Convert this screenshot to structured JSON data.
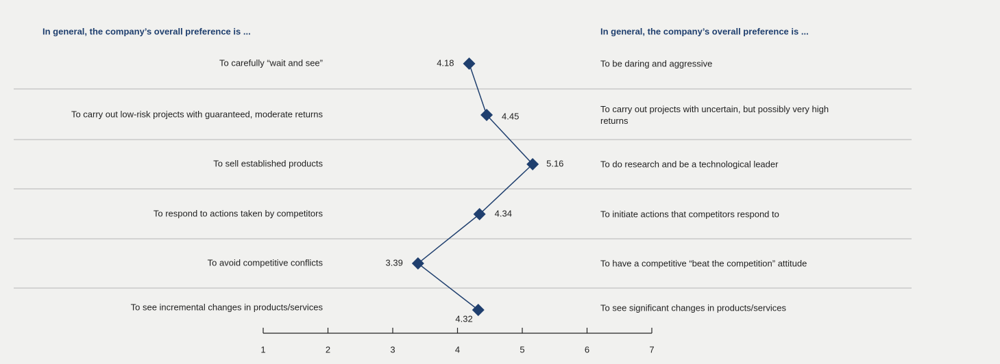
{
  "chart_data": {
    "type": "line",
    "left_header": "In general, the company’s overall preference is ...",
    "right_header": "In general, the company’s overall preference is ...",
    "categories": [
      "To carefully “wait and see”",
      "To carry out low-risk projects with guaranteed, moderate returns",
      "To sell established products",
      "To respond to actions taken by competitors",
      "To avoid competitive conflicts",
      "To see incremental changes in products/services"
    ],
    "right_labels": [
      "To be daring and aggressive",
      "To carry out projects with uncertain, but possibly very high returns",
      "To do research and be a technological leader",
      "To initiate actions that competitors respond to",
      "To have a competitive “beat the competition” attitude",
      "To see significant changes in products/services"
    ],
    "values": [
      4.18,
      4.45,
      5.16,
      4.34,
      3.39,
      4.32
    ],
    "color": "#1f3f6e",
    "xlim": [
      1,
      7
    ],
    "xticks": [
      1,
      2,
      3,
      4,
      5,
      6,
      7
    ]
  }
}
